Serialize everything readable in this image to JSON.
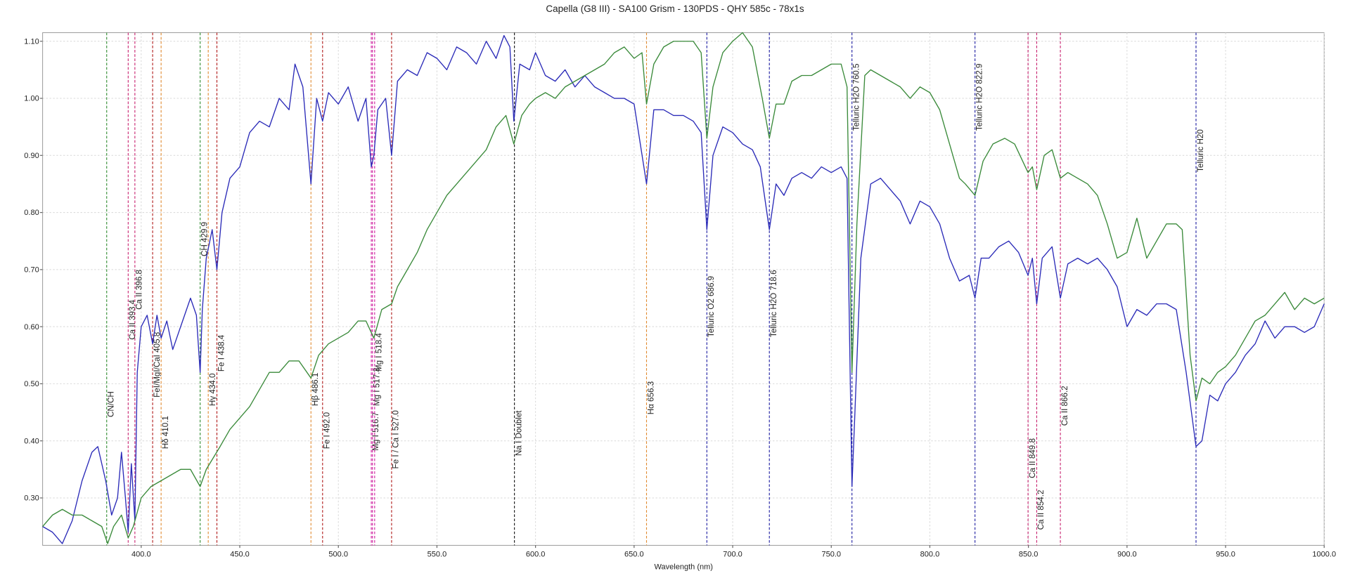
{
  "chart_data": {
    "type": "line",
    "title": "Capella (G8 III) - SA100 Grism - 130PDS - QHY 585c - 78x1s",
    "x_label": "Wavelength (nm)",
    "xlim": [
      350,
      1000
    ],
    "ylim": [
      0.217,
      1.115
    ],
    "xticks": [
      {
        "value": 400,
        "label": "400.0"
      },
      {
        "value": 450,
        "label": "450.0"
      },
      {
        "value": 500,
        "label": "500.0"
      },
      {
        "value": 550,
        "label": "550.0"
      },
      {
        "value": 600,
        "label": "600.0"
      },
      {
        "value": 650,
        "label": "650.0"
      },
      {
        "value": 700,
        "label": "700.0"
      },
      {
        "value": 750,
        "label": "750.0"
      },
      {
        "value": 800,
        "label": "800.0"
      },
      {
        "value": 850,
        "label": "850.0"
      },
      {
        "value": 900,
        "label": "900.0"
      },
      {
        "value": 950,
        "label": "950.0"
      },
      {
        "value": 1000,
        "label": "1000.0"
      }
    ],
    "yticks": [
      {
        "value": 0.3,
        "label": "0.30"
      },
      {
        "value": 0.4,
        "label": "0.40"
      },
      {
        "value": 0.5,
        "label": "0.50"
      },
      {
        "value": 0.6,
        "label": "0.60"
      },
      {
        "value": 0.7,
        "label": "0.70"
      },
      {
        "value": 0.8,
        "label": "0.80"
      },
      {
        "value": 0.9,
        "label": "0.90"
      },
      {
        "value": 1.0,
        "label": "1.00"
      },
      {
        "value": 1.1,
        "label": "1.10"
      }
    ],
    "grid": true,
    "series": [
      {
        "color": "#2b2bb8",
        "x": [
          350,
          355,
          360,
          365,
          370,
          375,
          378,
          382,
          385,
          388,
          390,
          392,
          393.4,
          395,
          396.8,
          398,
          400,
          403,
          405.8,
          408,
          410.1,
          413,
          416,
          420,
          425,
          428,
          429.9,
          431,
          433,
          436,
          438.4,
          441,
          445,
          450,
          455,
          460,
          465,
          470,
          475,
          478,
          482,
          486.1,
          489,
          492,
          495,
          500,
          505,
          510,
          514,
          516.7,
          518,
          520,
          524,
          527,
          530,
          535,
          540,
          545,
          550,
          555,
          560,
          565,
          570,
          575,
          580,
          584,
          587,
          589,
          592,
          597,
          600,
          605,
          610,
          615,
          620,
          625,
          630,
          635,
          640,
          645,
          650,
          656.3,
          660,
          665,
          670,
          675,
          680,
          684,
          686.9,
          690,
          695,
          700,
          705,
          710,
          714,
          718.6,
          722,
          726,
          730,
          735,
          740,
          745,
          750,
          755,
          758,
          760.5,
          762,
          765,
          770,
          775,
          780,
          785,
          790,
          795,
          800,
          805,
          810,
          815,
          820,
          822.9,
          826,
          830,
          835,
          840,
          845,
          849.8,
          852,
          854.2,
          857,
          862,
          866.2,
          870,
          875,
          880,
          885,
          890,
          895,
          900,
          905,
          910,
          915,
          920,
          925,
          930,
          935,
          938,
          942,
          946,
          950,
          955,
          960,
          965,
          970,
          975,
          980,
          985,
          990,
          995,
          1000
        ],
        "values": [
          0.25,
          0.24,
          0.22,
          0.26,
          0.33,
          0.38,
          0.39,
          0.33,
          0.27,
          0.3,
          0.38,
          0.3,
          0.24,
          0.36,
          0.26,
          0.52,
          0.6,
          0.62,
          0.57,
          0.62,
          0.58,
          0.61,
          0.56,
          0.6,
          0.65,
          0.62,
          0.52,
          0.63,
          0.72,
          0.77,
          0.7,
          0.8,
          0.86,
          0.88,
          0.94,
          0.96,
          0.95,
          1.0,
          0.98,
          1.06,
          1.02,
          0.85,
          1.0,
          0.96,
          1.01,
          0.99,
          1.02,
          0.96,
          1.0,
          0.88,
          0.9,
          0.98,
          1.0,
          0.9,
          1.03,
          1.05,
          1.04,
          1.08,
          1.07,
          1.05,
          1.09,
          1.08,
          1.06,
          1.1,
          1.07,
          1.11,
          1.09,
          0.96,
          1.06,
          1.05,
          1.08,
          1.04,
          1.03,
          1.05,
          1.02,
          1.04,
          1.02,
          1.01,
          1.0,
          1.0,
          0.99,
          0.85,
          0.98,
          0.98,
          0.97,
          0.97,
          0.96,
          0.94,
          0.77,
          0.9,
          0.95,
          0.94,
          0.92,
          0.91,
          0.88,
          0.77,
          0.85,
          0.83,
          0.86,
          0.87,
          0.86,
          0.88,
          0.87,
          0.88,
          0.86,
          0.32,
          0.45,
          0.72,
          0.85,
          0.86,
          0.84,
          0.82,
          0.78,
          0.82,
          0.81,
          0.78,
          0.72,
          0.68,
          0.69,
          0.65,
          0.72,
          0.72,
          0.74,
          0.75,
          0.73,
          0.69,
          0.72,
          0.64,
          0.72,
          0.74,
          0.65,
          0.71,
          0.72,
          0.71,
          0.72,
          0.7,
          0.67,
          0.6,
          0.63,
          0.62,
          0.64,
          0.64,
          0.63,
          0.52,
          0.39,
          0.4,
          0.48,
          0.47,
          0.5,
          0.52,
          0.55,
          0.57,
          0.61,
          0.58,
          0.6,
          0.6,
          0.59,
          0.6,
          0.64
        ]
      },
      {
        "color": "#3a8a3a",
        "x": [
          350,
          355,
          360,
          365,
          370,
          375,
          380,
          383,
          386,
          390,
          393.4,
          396,
          400,
          405,
          410,
          415,
          420,
          425,
          429.9,
          433,
          440,
          445,
          450,
          455,
          460,
          465,
          470,
          475,
          480,
          486.1,
          490,
          495,
          500,
          505,
          510,
          514,
          518,
          522,
          527,
          530,
          535,
          540,
          545,
          550,
          555,
          560,
          565,
          570,
          575,
          580,
          585,
          589,
          593,
          597,
          600,
          605,
          610,
          615,
          620,
          625,
          630,
          635,
          640,
          645,
          650,
          654,
          656.3,
          660,
          665,
          670,
          675,
          680,
          684,
          686.9,
          690,
          695,
          700,
          705,
          710,
          715,
          718.6,
          722,
          726,
          730,
          735,
          740,
          745,
          750,
          755,
          758,
          760.5,
          763,
          767,
          770,
          775,
          780,
          785,
          790,
          795,
          800,
          805,
          810,
          815,
          818,
          822.9,
          827,
          832,
          838,
          843,
          849.8,
          852,
          854.2,
          858,
          862,
          866.2,
          870,
          875,
          880,
          885,
          890,
          895,
          900,
          905,
          910,
          915,
          920,
          925,
          928,
          932,
          935,
          938,
          942,
          946,
          950,
          955,
          960,
          965,
          970,
          975,
          980,
          985,
          990,
          995,
          1000
        ],
        "values": [
          0.25,
          0.27,
          0.28,
          0.27,
          0.27,
          0.26,
          0.25,
          0.22,
          0.25,
          0.27,
          0.23,
          0.25,
          0.3,
          0.32,
          0.33,
          0.34,
          0.35,
          0.35,
          0.32,
          0.35,
          0.39,
          0.42,
          0.44,
          0.46,
          0.49,
          0.52,
          0.52,
          0.54,
          0.54,
          0.51,
          0.55,
          0.57,
          0.58,
          0.59,
          0.61,
          0.61,
          0.58,
          0.63,
          0.64,
          0.67,
          0.7,
          0.73,
          0.77,
          0.8,
          0.83,
          0.85,
          0.87,
          0.89,
          0.91,
          0.95,
          0.97,
          0.92,
          0.97,
          0.99,
          1.0,
          1.01,
          1.0,
          1.02,
          1.03,
          1.04,
          1.05,
          1.06,
          1.08,
          1.09,
          1.07,
          1.08,
          0.99,
          1.06,
          1.09,
          1.1,
          1.1,
          1.1,
          1.08,
          0.93,
          1.02,
          1.08,
          1.1,
          1.115,
          1.09,
          1.0,
          0.93,
          0.99,
          0.99,
          1.03,
          1.04,
          1.04,
          1.05,
          1.06,
          1.06,
          1.02,
          0.52,
          0.78,
          1.04,
          1.05,
          1.04,
          1.03,
          1.02,
          1.0,
          1.02,
          1.01,
          0.98,
          0.92,
          0.86,
          0.85,
          0.83,
          0.89,
          0.92,
          0.93,
          0.92,
          0.87,
          0.88,
          0.84,
          0.9,
          0.91,
          0.86,
          0.87,
          0.86,
          0.85,
          0.83,
          0.78,
          0.72,
          0.73,
          0.79,
          0.72,
          0.75,
          0.78,
          0.78,
          0.77,
          0.55,
          0.47,
          0.51,
          0.5,
          0.52,
          0.53,
          0.55,
          0.58,
          0.61,
          0.62,
          0.64,
          0.66,
          0.63,
          0.65,
          0.64,
          0.65
        ]
      }
    ],
    "markers": [
      {
        "label": "CN/CH",
        "x": 382.5,
        "color": "#2e8b2e"
      },
      {
        "label": "Ca II 393.4",
        "x": 393.4,
        "color": "#c8206e"
      },
      {
        "label": "Ca II 396.8",
        "x": 396.8,
        "color": "#c8206e"
      },
      {
        "label": "FeI/MgI/CaI 405.8",
        "x": 405.8,
        "color": "#b01818"
      },
      {
        "label": "Hδ 410.1",
        "x": 410.1,
        "color": "#e08a30"
      },
      {
        "label": "CH 429.9",
        "x": 429.9,
        "color": "#2e8b2e"
      },
      {
        "label": "Hγ 434.0",
        "x": 434.0,
        "color": "#e08a30"
      },
      {
        "label": "Fe I 438.4",
        "x": 438.4,
        "color": "#b01818"
      },
      {
        "label": "Hβ 486.1",
        "x": 486.1,
        "color": "#e08a30"
      },
      {
        "label": "Fe I 492.0",
        "x": 492.0,
        "color": "#b01818"
      },
      {
        "label": "Mg I 516.7",
        "x": 516.7,
        "color": "#d020a0"
      },
      {
        "label": "Mg I 517.3",
        "x": 517.3,
        "color": "#d020a0"
      },
      {
        "label": "Mg I 518.4",
        "x": 518.4,
        "color": "#d020a0"
      },
      {
        "label": "Fe I / Ca I 527.0",
        "x": 527.0,
        "color": "#b01818"
      },
      {
        "label": "Na I Doublet",
        "x": 589.3,
        "color": "#111111"
      },
      {
        "label": "Hα 656.3",
        "x": 656.3,
        "color": "#e08a30"
      },
      {
        "label": "Telluric O2 686.9",
        "x": 686.9,
        "color": "#1a1aa0"
      },
      {
        "label": "Telluric H2O 718.6",
        "x": 718.6,
        "color": "#1a1aa0"
      },
      {
        "label": "Telluric H2O 760.5",
        "x": 760.5,
        "color": "#1a1aa0"
      },
      {
        "label": "Telluric H2O 822.9",
        "x": 822.9,
        "color": "#1a1aa0"
      },
      {
        "label": "Ca II 849.8",
        "x": 849.8,
        "color": "#c8206e"
      },
      {
        "label": "Ca II 854.2",
        "x": 854.2,
        "color": "#c8206e"
      },
      {
        "label": "Ca II 866.2",
        "x": 866.2,
        "color": "#c8206e"
      },
      {
        "label": "Telluric H20",
        "x": 935.0,
        "color": "#1a1aa0"
      }
    ]
  }
}
